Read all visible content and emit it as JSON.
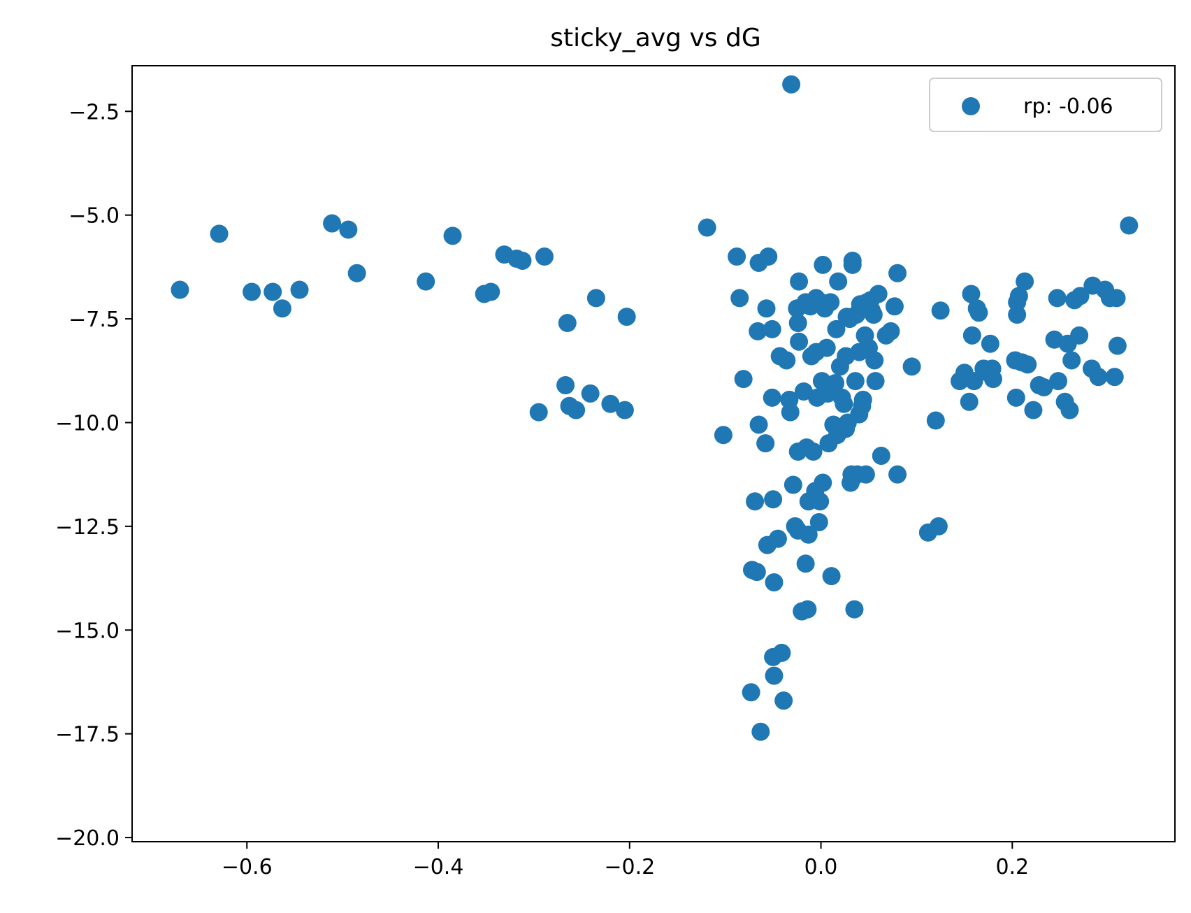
{
  "chart_data": {
    "type": "scatter",
    "title": "sticky_avg vs dG",
    "xlabel": "",
    "ylabel": "",
    "xlim": [
      -0.72,
      0.37
    ],
    "ylim": [
      -20.1,
      -1.4
    ],
    "xticks": [
      -0.6,
      -0.4,
      -0.2,
      0.0,
      0.2
    ],
    "xtick_labels": [
      "−0.6",
      "−0.4",
      "−0.2",
      "0.0",
      "0.2"
    ],
    "yticks": [
      -2.5,
      -5.0,
      -7.5,
      -10.0,
      -12.5,
      -15.0,
      -17.5,
      -20.0
    ],
    "ytick_labels": [
      "−2.5",
      "−5.0",
      "−7.5",
      "−10.0",
      "−12.5",
      "−15.0",
      "−17.5",
      "−20.0"
    ],
    "grid": false,
    "legend_position": "top-right",
    "series": [
      {
        "name": "rp: -0.06",
        "color": "#1f77b4",
        "points": [
          [
            -0.67,
            -6.8
          ],
          [
            -0.629,
            -5.45
          ],
          [
            -0.595,
            -6.85
          ],
          [
            -0.573,
            -6.85
          ],
          [
            -0.563,
            -7.25
          ],
          [
            -0.545,
            -6.8
          ],
          [
            -0.511,
            -5.2
          ],
          [
            -0.494,
            -5.35
          ],
          [
            -0.485,
            -6.4
          ],
          [
            -0.413,
            -6.6
          ],
          [
            -0.385,
            -5.5
          ],
          [
            -0.352,
            -6.9
          ],
          [
            -0.345,
            -6.85
          ],
          [
            -0.331,
            -5.95
          ],
          [
            -0.318,
            -6.05
          ],
          [
            -0.312,
            -6.1
          ],
          [
            -0.289,
            -6.0
          ],
          [
            -0.295,
            -9.75
          ],
          [
            -0.267,
            -9.1
          ],
          [
            -0.265,
            -7.6
          ],
          [
            -0.263,
            -9.6
          ],
          [
            -0.256,
            -9.7
          ],
          [
            -0.241,
            -9.3
          ],
          [
            -0.235,
            -7.0
          ],
          [
            -0.22,
            -9.55
          ],
          [
            -0.205,
            -9.7
          ],
          [
            -0.203,
            -7.45
          ],
          [
            -0.119,
            -5.3
          ],
          [
            -0.102,
            -10.3
          ],
          [
            -0.088,
            -6.0
          ],
          [
            -0.085,
            -7.0
          ],
          [
            -0.081,
            -8.95
          ],
          [
            -0.065,
            -6.15
          ],
          [
            -0.065,
            -10.05
          ],
          [
            -0.066,
            -7.8
          ],
          [
            -0.069,
            -11.9
          ],
          [
            -0.072,
            -13.55
          ],
          [
            -0.067,
            -13.6
          ],
          [
            -0.073,
            -16.5
          ],
          [
            -0.063,
            -17.45
          ],
          [
            -0.058,
            -10.5
          ],
          [
            -0.057,
            -7.25
          ],
          [
            -0.055,
            -6.0
          ],
          [
            -0.051,
            -9.4
          ],
          [
            -0.051,
            -7.75
          ],
          [
            -0.05,
            -11.85
          ],
          [
            -0.049,
            -13.85
          ],
          [
            -0.05,
            -15.65
          ],
          [
            -0.049,
            -16.1
          ],
          [
            -0.056,
            -12.95
          ],
          [
            -0.045,
            -12.8
          ],
          [
            -0.043,
            -8.4
          ],
          [
            -0.041,
            -15.55
          ],
          [
            -0.039,
            -16.7
          ],
          [
            -0.036,
            -8.5
          ],
          [
            -0.033,
            -9.45
          ],
          [
            -0.032,
            -9.75
          ],
          [
            -0.031,
            -1.85
          ],
          [
            -0.029,
            -11.5
          ],
          [
            -0.027,
            -12.5
          ],
          [
            -0.024,
            -12.6
          ],
          [
            -0.025,
            -7.25
          ],
          [
            -0.024,
            -7.6
          ],
          [
            -0.023,
            -8.05
          ],
          [
            -0.024,
            -10.7
          ],
          [
            -0.023,
            -6.6
          ],
          [
            -0.02,
            -14.55
          ],
          [
            -0.018,
            -9.25
          ],
          [
            -0.016,
            -7.1
          ],
          [
            -0.016,
            -13.4
          ],
          [
            -0.015,
            -10.6
          ],
          [
            -0.014,
            -14.5
          ],
          [
            -0.013,
            -12.7
          ],
          [
            -0.013,
            -11.9
          ],
          [
            -0.01,
            -8.4
          ],
          [
            -0.011,
            -7.2
          ],
          [
            -0.008,
            -10.7
          ],
          [
            -0.006,
            -11.65
          ],
          [
            -0.005,
            -8.3
          ],
          [
            -0.005,
            -7.0
          ],
          [
            -0.004,
            -9.4
          ],
          [
            -0.002,
            -12.4
          ],
          [
            -0.001,
            -11.9
          ],
          [
            0.0,
            -7.1
          ],
          [
            0.001,
            -9.0
          ],
          [
            0.002,
            -11.45
          ],
          [
            0.002,
            -6.2
          ],
          [
            0.004,
            -7.25
          ],
          [
            0.006,
            -8.2
          ],
          [
            0.007,
            -9.3
          ],
          [
            0.008,
            -10.5
          ],
          [
            0.01,
            -7.1
          ],
          [
            0.011,
            -13.7
          ],
          [
            0.013,
            -10.05
          ],
          [
            0.015,
            -9.05
          ],
          [
            0.016,
            -7.75
          ],
          [
            0.017,
            -10.3
          ],
          [
            0.018,
            -6.6
          ],
          [
            0.02,
            -8.65
          ],
          [
            0.022,
            -9.4
          ],
          [
            0.024,
            -9.55
          ],
          [
            0.026,
            -10.15
          ],
          [
            0.026,
            -8.4
          ],
          [
            0.027,
            -7.45
          ],
          [
            0.028,
            -10.0
          ],
          [
            0.03,
            -7.5
          ],
          [
            0.031,
            -11.45
          ],
          [
            0.032,
            -11.25
          ],
          [
            0.033,
            -6.1
          ],
          [
            0.033,
            -6.2
          ],
          [
            0.035,
            -14.5
          ],
          [
            0.036,
            -9.0
          ],
          [
            0.037,
            -7.4
          ],
          [
            0.038,
            -11.25
          ],
          [
            0.04,
            -9.8
          ],
          [
            0.04,
            -8.3
          ],
          [
            0.041,
            -7.15
          ],
          [
            0.043,
            -9.6
          ],
          [
            0.044,
            -9.45
          ],
          [
            0.046,
            -7.9
          ],
          [
            0.047,
            -11.25
          ],
          [
            0.048,
            -7.1
          ],
          [
            0.05,
            -8.2
          ],
          [
            0.052,
            -7.05
          ],
          [
            0.053,
            -7.3
          ],
          [
            0.055,
            -7.4
          ],
          [
            0.056,
            -8.5
          ],
          [
            0.057,
            -9.0
          ],
          [
            0.06,
            -6.9
          ],
          [
            0.063,
            -10.8
          ],
          [
            0.068,
            -7.9
          ],
          [
            0.073,
            -7.8
          ],
          [
            0.077,
            -7.2
          ],
          [
            0.08,
            -6.4
          ],
          [
            0.08,
            -11.25
          ],
          [
            0.095,
            -8.65
          ],
          [
            0.112,
            -12.65
          ],
          [
            0.12,
            -9.95
          ],
          [
            0.125,
            -7.3
          ],
          [
            0.123,
            -12.5
          ],
          [
            0.145,
            -9.0
          ],
          [
            0.15,
            -8.8
          ],
          [
            0.155,
            -9.5
          ],
          [
            0.157,
            -6.9
          ],
          [
            0.158,
            -7.9
          ],
          [
            0.16,
            -9.0
          ],
          [
            0.163,
            -7.25
          ],
          [
            0.165,
            -7.35
          ],
          [
            0.17,
            -8.7
          ],
          [
            0.175,
            -8.8
          ],
          [
            0.177,
            -8.1
          ],
          [
            0.179,
            -8.7
          ],
          [
            0.18,
            -8.95
          ],
          [
            0.203,
            -8.5
          ],
          [
            0.204,
            -9.4
          ],
          [
            0.205,
            -7.4
          ],
          [
            0.205,
            -7.1
          ],
          [
            0.207,
            -6.95
          ],
          [
            0.21,
            -8.55
          ],
          [
            0.213,
            -6.6
          ],
          [
            0.216,
            -8.6
          ],
          [
            0.222,
            -9.7
          ],
          [
            0.228,
            -9.1
          ],
          [
            0.233,
            -9.15
          ],
          [
            0.244,
            -8.0
          ],
          [
            0.247,
            -7.0
          ],
          [
            0.248,
            -9.0
          ],
          [
            0.255,
            -9.5
          ],
          [
            0.258,
            -8.1
          ],
          [
            0.26,
            -9.7
          ],
          [
            0.262,
            -8.5
          ],
          [
            0.265,
            -7.05
          ],
          [
            0.27,
            -7.9
          ],
          [
            0.271,
            -6.95
          ],
          [
            0.283,
            -8.7
          ],
          [
            0.284,
            -6.7
          ],
          [
            0.29,
            -8.9
          ],
          [
            0.297,
            -6.8
          ],
          [
            0.302,
            -7.0
          ],
          [
            0.307,
            -8.9
          ],
          [
            0.309,
            -7.0
          ],
          [
            0.31,
            -8.15
          ],
          [
            0.322,
            -5.25
          ]
        ]
      }
    ]
  }
}
